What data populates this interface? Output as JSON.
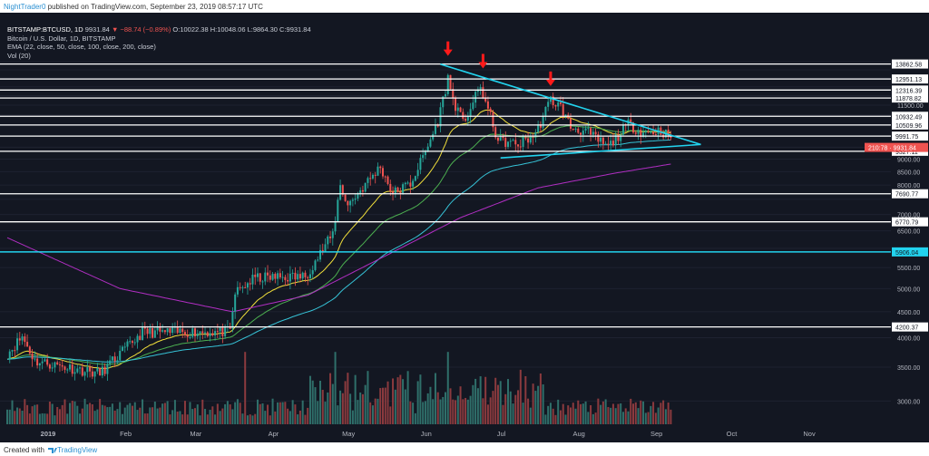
{
  "header": {
    "author": "NightTrader0",
    "published_text": " published on TradingView.com, September 23, 2019 08:57:17 UTC"
  },
  "legend": {
    "symbol_line": "BITSTAMP:BTCUSD, 1D",
    "last_price": "9931.84",
    "change": "▼ −88.74 (−0.89%)",
    "ohlc": "O:10022.38 H:10048.06 L:9864.30 C:9931.84",
    "title": "Bitcoin / U.S. Dollar, 1D, BITSTAMP",
    "ema": "EMA (22, close, 50, close, 100, close, 200, close)",
    "vol": "Vol (20)"
  },
  "footer": {
    "created_with": "Created with ",
    "brand": "TradingView"
  },
  "colors": {
    "background": "#131722",
    "up": "#26a69a",
    "down": "#ef5350",
    "vol_up": "#2f6f6a",
    "vol_down": "#8b3a3e",
    "ema22": "#f2e03b",
    "ema50": "#4caf50",
    "ema100": "#36c2d6",
    "ema200": "#b02ec2",
    "hline": "#ffffff",
    "hline_support": "#22d3ee",
    "trend": "#22d3ee",
    "arrow": "#ff1a1a",
    "current_label": "#ef5350"
  },
  "chart_data": {
    "type": "candlestick",
    "title": "Bitcoin / U.S. Dollar, 1D, BITSTAMP",
    "scale": "log",
    "ylim": [
      2700,
      17500
    ],
    "x_ticks": [
      "2019",
      "Feb",
      "Mar",
      "Apr",
      "May",
      "Jun",
      "Jul",
      "Aug",
      "Sep",
      "Oct",
      "Nov"
    ],
    "y_ticks": [
      3000,
      3500,
      4000,
      4500,
      5000,
      5500,
      6000,
      6500,
      7000,
      7500,
      8000,
      8500,
      9000,
      9500,
      10000,
      10500,
      11000,
      11500,
      12000,
      12500,
      13000,
      13500,
      14000
    ],
    "price_path": [
      [
        "2019-01-01",
        3720
      ],
      [
        "2019-01-07",
        4020
      ],
      [
        "2019-01-12",
        3600
      ],
      [
        "2019-01-31",
        3450
      ],
      [
        "2019-02-07",
        3400
      ],
      [
        "2019-02-24",
        4100
      ],
      [
        "2019-03-31",
        4110
      ],
      [
        "2019-04-02",
        4900
      ],
      [
        "2019-04-10",
        5250
      ],
      [
        "2019-04-30",
        5280
      ],
      [
        "2019-05-11",
        6400
      ],
      [
        "2019-05-14",
        8000
      ],
      [
        "2019-05-17",
        7300
      ],
      [
        "2019-05-30",
        8700
      ],
      [
        "2019-06-04",
        7700
      ],
      [
        "2019-06-11",
        8050
      ],
      [
        "2019-06-17",
        9300
      ],
      [
        "2019-06-22",
        10700
      ],
      [
        "2019-06-26",
        13000
      ],
      [
        "2019-06-28",
        11800
      ],
      [
        "2019-07-02",
        10600
      ],
      [
        "2019-07-09",
        12500
      ],
      [
        "2019-07-16",
        9800
      ],
      [
        "2019-07-24",
        9600
      ],
      [
        "2019-07-31",
        10100
      ],
      [
        "2019-08-06",
        11800
      ],
      [
        "2019-08-10",
        11400
      ],
      [
        "2019-08-14",
        10400
      ],
      [
        "2019-08-20",
        10200
      ],
      [
        "2019-08-29",
        9500
      ],
      [
        "2019-09-06",
        10550
      ],
      [
        "2019-09-12",
        10150
      ],
      [
        "2019-09-19",
        10250
      ],
      [
        "2019-09-23",
        9931.84
      ]
    ],
    "ema200_path": [
      [
        "2019-01-01",
        6300
      ],
      [
        "2019-02-15",
        5000
      ],
      [
        "2019-04-01",
        4500
      ],
      [
        "2019-05-01",
        4850
      ],
      [
        "2019-06-01",
        5800
      ],
      [
        "2019-07-01",
        6900
      ],
      [
        "2019-08-01",
        7900
      ],
      [
        "2019-09-01",
        8450
      ],
      [
        "2019-09-23",
        8800
      ]
    ],
    "horizontal_levels": [
      {
        "value": 13862.58,
        "label": "13862.58",
        "color": "white"
      },
      {
        "value": 12951.13,
        "label": "12951.13",
        "color": "white"
      },
      {
        "value": 12316.39,
        "label": "12316.39",
        "color": "white"
      },
      {
        "value": 11878.82,
        "label": "11878.82",
        "color": "white"
      },
      {
        "value": 10932.49,
        "label": "10932.49",
        "color": "white"
      },
      {
        "value": 10509.96,
        "label": "10509.96",
        "color": "white"
      },
      {
        "value": 9991.75,
        "label": "9991.75",
        "color": "white"
      },
      {
        "value": 9327.11,
        "label": "9327.11",
        "color": "white"
      },
      {
        "value": 7690.77,
        "label": "7690.77",
        "color": "white"
      },
      {
        "value": 6770.79,
        "label": "6770.79",
        "color": "white"
      },
      {
        "value": 5906.04,
        "label": "5906.04",
        "color": "cyan"
      },
      {
        "value": 4200.37,
        "label": "4200.37",
        "color": "white"
      }
    ],
    "current_price": {
      "value": 9931.84,
      "label": "210:78 · 9931.84"
    },
    "trendlines": [
      {
        "from": [
          "2019-06-23",
          13850
        ],
        "to": [
          "2019-10-05",
          9620
        ]
      },
      {
        "from": [
          "2019-07-17",
          9050
        ],
        "to": [
          "2019-10-05",
          9620
        ]
      }
    ],
    "arrows": [
      {
        "date": "2019-06-26",
        "price": 14500
      },
      {
        "date": "2019-07-10",
        "price": 13700
      },
      {
        "date": "2019-08-06",
        "price": 12650
      }
    ]
  }
}
